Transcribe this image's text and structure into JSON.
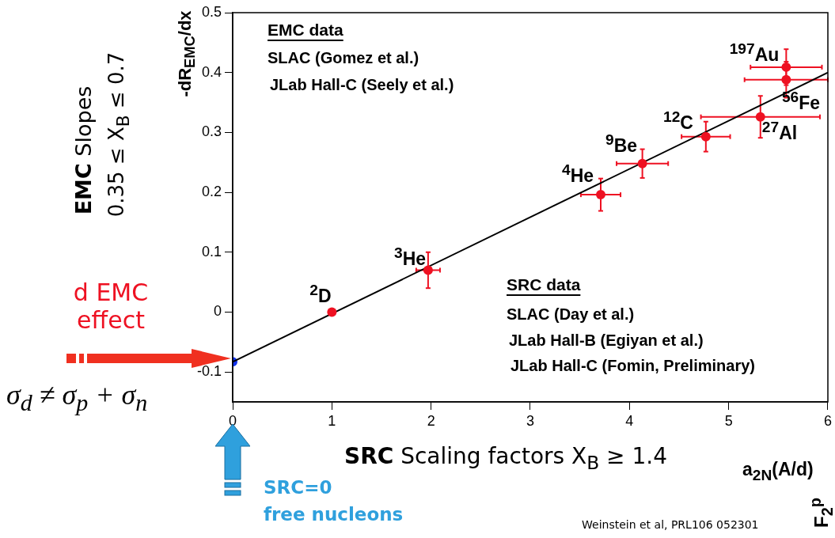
{
  "chart_data": {
    "type": "scatter",
    "xlabel": "a$_{2N}$(A/d)",
    "ylabel": "-dR$_{EMC}$/dx",
    "xlim": [
      0,
      6
    ],
    "xticks": [
      0,
      1,
      2,
      3,
      4,
      5,
      6
    ],
    "ylim": [
      -0.15,
      0.5
    ],
    "yticks": [
      -0.1,
      0,
      0.1,
      0.2,
      0.3,
      0.4,
      0.5
    ],
    "marker": "circle",
    "legend": false,
    "series": [
      {
        "type": "scatter",
        "color": "#ee1122",
        "x": [
          1.0,
          1.97,
          3.71,
          4.13,
          4.77,
          5.32,
          5.58,
          5.58
        ],
        "values": [
          0.0,
          0.07,
          0.196,
          0.248,
          0.293,
          0.326,
          0.409,
          0.388
        ],
        "errors": [
          null,
          0.03,
          0.027,
          0.024,
          0.025,
          0.035,
          0.03,
          0.03
        ],
        "xerrors": [
          null,
          0.12,
          0.2,
          0.26,
          0.245,
          0.6,
          0.36,
          0.42
        ]
      },
      {
        "type": "line",
        "color": "#000000",
        "marker": "none",
        "x": [
          0,
          6
        ],
        "values": [
          -0.083,
          0.4
        ]
      },
      {
        "type": "scatter",
        "color": "#1133ee",
        "x": [
          0
        ],
        "values": [
          -0.083
        ]
      }
    ],
    "annotations": [
      "$^{2}$D",
      "$^{3}$He",
      "$^{4}$He",
      "$^{9}$Be",
      "$^{12}$C",
      "$^{27}$Al",
      "$^{197}$Au",
      "$^{56}$Fe",
      "EMC data",
      "SLAC (Gomez et al.)",
      "JLab Hall-C (Seely et al.)",
      "SRC data",
      "SLAC (Day et al.)",
      "JLab Hall-B (Egiyan et al.)",
      "JLab Hall-C (Fomin, Preliminary)",
      "EMC",
      "Slopes",
      "0.35 ≤ X$_{B}$ ≤ 0.7",
      "d EMC effect",
      "σ$_{d}$ ≠ σ$_{p}$ + σ$_{n}$",
      "SRC",
      "Scaling factors X$_{B}$ ≥ 1.4",
      "SRC=0",
      "free nucleons",
      "Weinstein et al, PRL106 052301",
      "F$_{2}$$^{p}$"
    ]
  }
}
